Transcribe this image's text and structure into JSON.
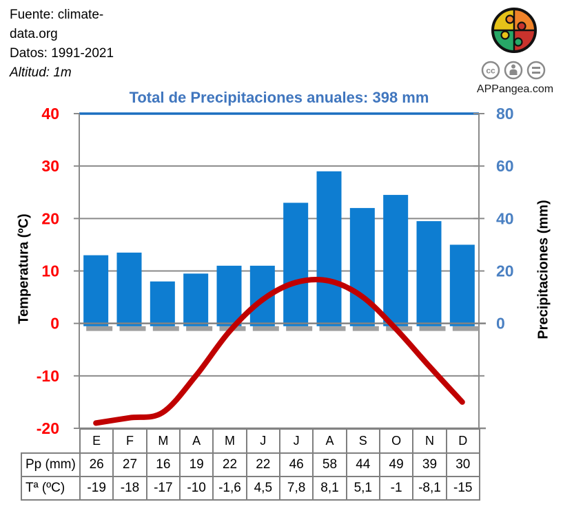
{
  "header": {
    "fuente_line1": "Fuente: climate-",
    "fuente_line2": "data.org",
    "datos": "Datos: 1991-2021",
    "altitud": "Altitud: 1m"
  },
  "branding": {
    "site": "APPangea.com",
    "license_icons": [
      "cc",
      "attribution",
      "equal"
    ]
  },
  "chart_data": {
    "type": "bar+line",
    "title": "Total de Precipitaciones anuales: 398 mm",
    "annual_total_mm": 398,
    "categories": [
      "E",
      "F",
      "M",
      "A",
      "M",
      "J",
      "J",
      "A",
      "S",
      "O",
      "N",
      "D"
    ],
    "series": [
      {
        "name": "Pp (mm)",
        "type": "bar",
        "axis": "right",
        "values": [
          26,
          27,
          16,
          19,
          22,
          22,
          46,
          58,
          44,
          49,
          39,
          30
        ]
      },
      {
        "name": "Tª (ºC)",
        "type": "line",
        "axis": "left",
        "values": [
          -19,
          -18,
          -17,
          -10,
          -1.6,
          4.5,
          7.8,
          8.1,
          5.1,
          -1,
          -8.1,
          -15
        ]
      }
    ],
    "left_axis": {
      "label": "Temperatura (ºC)",
      "min": -20,
      "max": 40,
      "ticks": [
        40,
        30,
        20,
        10,
        0,
        -10,
        -20
      ]
    },
    "right_axis": {
      "label": "Precipitaciones (mm)",
      "min": -40,
      "max": 80,
      "ticks": [
        80,
        60,
        40,
        20,
        0
      ]
    },
    "grid": true,
    "legend": "none"
  },
  "table": {
    "row_headers": [
      "Pp (mm)",
      "Tª (ºC)"
    ],
    "months": [
      "E",
      "F",
      "M",
      "A",
      "M",
      "J",
      "J",
      "A",
      "S",
      "O",
      "N",
      "D"
    ],
    "pp": [
      "26",
      "27",
      "16",
      "19",
      "22",
      "22",
      "46",
      "58",
      "44",
      "49",
      "39",
      "30"
    ],
    "temp": [
      "-19",
      "-18",
      "-17",
      "-10",
      "-1,6",
      "4,5",
      "7,8",
      "8,1",
      "5,1",
      "-1",
      "-8,1",
      "-15"
    ]
  },
  "colors": {
    "bar": "#0E7DD1",
    "bar_shadow": "#A0A0A0",
    "line": "#C00000",
    "left_axis_text": "#FF0000",
    "right_axis_text": "#4A80C2",
    "title": "#4076BE",
    "top_border": "#1B6FC0",
    "grid": "#8A8A8A",
    "zero_axis": "#838383",
    "table_border": "#7F7F7F",
    "logo_yellow": "#E6C219",
    "logo_orange": "#F0832A",
    "logo_green": "#27A867",
    "logo_red": "#C9332D",
    "cc_gray": "#8A8A8A"
  }
}
